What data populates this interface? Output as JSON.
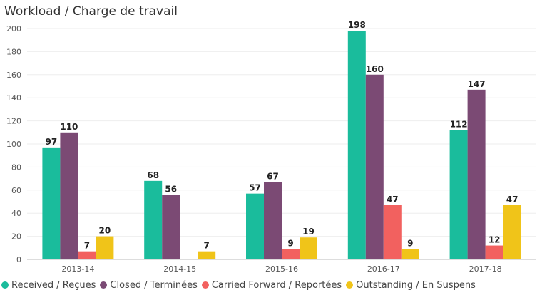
{
  "title": "Workload / Charge de travail",
  "chart_data": {
    "type": "bar",
    "title": "Workload / Charge de travail",
    "categories": [
      "2013-14",
      "2014-15",
      "2015-16",
      "2016-17",
      "2017-18"
    ],
    "series": [
      {
        "name": "Received / Reçues",
        "color": "#1abc9c",
        "values": [
          97,
          68,
          57,
          198,
          112
        ]
      },
      {
        "name": "Closed / Terminées",
        "color": "#7b4a74",
        "values": [
          110,
          56,
          67,
          160,
          147
        ]
      },
      {
        "name": "Carried Forward / Reportées",
        "color": "#f2615f",
        "values": [
          7,
          null,
          9,
          47,
          12
        ]
      },
      {
        "name": "Outstanding / En Suspens",
        "color": "#f0c419",
        "values": [
          20,
          7,
          19,
          9,
          47
        ]
      }
    ],
    "ylim": [
      0,
      200
    ],
    "yticks": [
      0,
      20,
      40,
      60,
      80,
      100,
      120,
      140,
      160,
      180,
      200
    ],
    "grid": true,
    "legend_position": "bottom-left"
  }
}
